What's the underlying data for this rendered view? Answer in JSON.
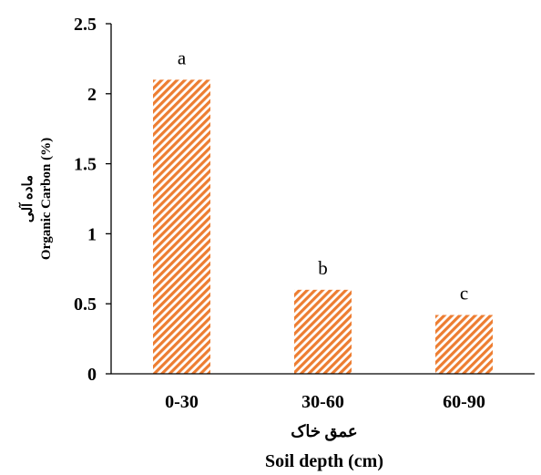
{
  "chart_data": {
    "type": "bar",
    "categories": [
      "0-30",
      "30-60",
      "60-90"
    ],
    "values": [
      2.1,
      0.6,
      0.42
    ],
    "significance_letters": [
      "a",
      "b",
      "c"
    ],
    "ylim": [
      0,
      2.5
    ],
    "yticks": [
      "0",
      "0.5",
      "1",
      "1.5",
      "2",
      "2.5"
    ],
    "ylabel_fa": "ماده آلی",
    "ylabel": "Organic Carbon (%)",
    "xlabel_fa": "عمق خاک",
    "xlabel": "Soil depth (cm)",
    "grid": false,
    "bar_color": "#ED7D31",
    "bar_pattern": "diagonal-hatch"
  }
}
